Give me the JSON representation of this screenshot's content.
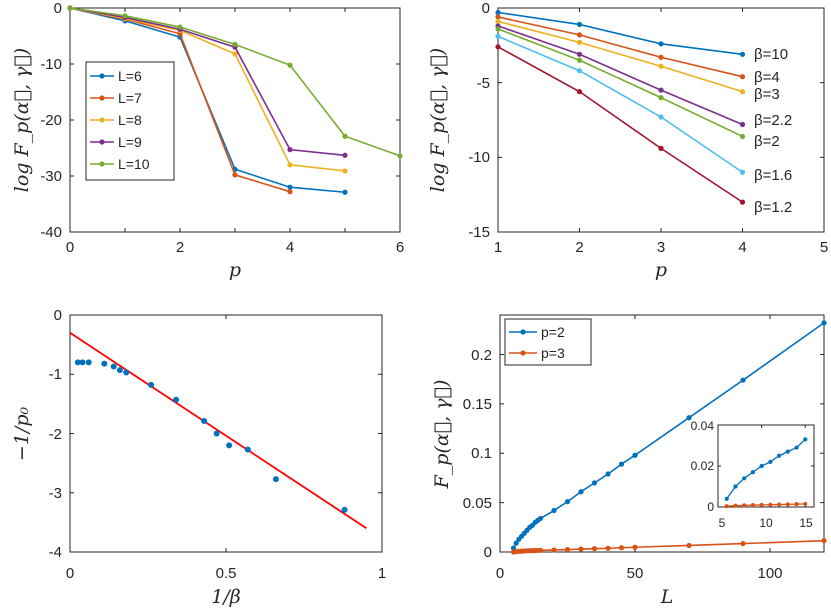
{
  "chart_data": [
    {
      "id": "a",
      "type": "line",
      "xlabel": "p",
      "ylabel": "log F_p(α⃗, γ⃗)",
      "xlim": [
        0,
        6
      ],
      "ylim": [
        -40,
        0
      ],
      "xticks": [
        "0",
        "2",
        "4",
        "6"
      ],
      "yticks": [
        "0",
        "-10",
        "-20",
        "-30",
        "-40"
      ],
      "legend": "left",
      "series": [
        {
          "name": "L=6",
          "color": "#0072BD",
          "x": [
            0,
            1,
            2,
            3,
            4,
            5
          ],
          "y": [
            0,
            -2.3,
            -5.2,
            -28.8,
            -32.0,
            -32.9
          ]
        },
        {
          "name": "L=7",
          "color": "#D95319",
          "x": [
            0,
            1,
            2,
            3,
            4
          ],
          "y": [
            0,
            -2.0,
            -4.6,
            -29.8,
            -32.8
          ]
        },
        {
          "name": "L=8",
          "color": "#EDB120",
          "x": [
            0,
            1,
            2,
            3,
            4,
            5
          ],
          "y": [
            0,
            -1.9,
            -4.0,
            -8.2,
            -28.0,
            -29.1
          ]
        },
        {
          "name": "L=9",
          "color": "#7E2F8E",
          "x": [
            0,
            1,
            2,
            3,
            4,
            5
          ],
          "y": [
            0,
            -1.7,
            -3.8,
            -7.0,
            -25.3,
            -26.3
          ]
        },
        {
          "name": "L=10",
          "color": "#77AC30",
          "x": [
            0,
            1,
            2,
            3,
            4,
            5,
            6
          ],
          "y": [
            0,
            -1.4,
            -3.4,
            -6.5,
            -10.2,
            -22.9,
            -26.4
          ]
        }
      ]
    },
    {
      "id": "b",
      "type": "line",
      "xlabel": "p",
      "ylabel": "log F_p(α⃗, γ⃗)",
      "xlim": [
        1,
        5
      ],
      "ylim": [
        -15,
        0
      ],
      "xticks": [
        "1",
        "2",
        "3",
        "4",
        "5"
      ],
      "yticks": [
        "0",
        "-5",
        "-10",
        "-15"
      ],
      "series": [
        {
          "name": "β=10",
          "color": "#0072BD",
          "x": [
            1,
            2,
            3,
            4
          ],
          "y": [
            -0.3,
            -1.1,
            -2.4,
            -3.1
          ]
        },
        {
          "name": "β=4",
          "color": "#D95319",
          "x": [
            1,
            2,
            3,
            4
          ],
          "y": [
            -0.6,
            -1.8,
            -3.3,
            -4.6
          ]
        },
        {
          "name": "β=3",
          "color": "#EDB120",
          "x": [
            1,
            2,
            3,
            4
          ],
          "y": [
            -0.9,
            -2.3,
            -3.9,
            -5.6
          ]
        },
        {
          "name": "β=2.2",
          "color": "#7E2F8E",
          "x": [
            1,
            2,
            3,
            4
          ],
          "y": [
            -1.2,
            -3.1,
            -5.5,
            -7.8
          ]
        },
        {
          "name": "β=2",
          "color": "#77AC30",
          "x": [
            1,
            2,
            3,
            4
          ],
          "y": [
            -1.4,
            -3.5,
            -6.0,
            -8.6
          ]
        },
        {
          "name": "β=1.6",
          "color": "#4DBEEE",
          "x": [
            1,
            2,
            3,
            4
          ],
          "y": [
            -1.9,
            -4.2,
            -7.3,
            -11.0
          ]
        },
        {
          "name": "β=1.2",
          "color": "#A2142F",
          "x": [
            1,
            2,
            3,
            4
          ],
          "y": [
            -2.6,
            -5.6,
            -9.4,
            -13.0
          ]
        }
      ]
    },
    {
      "id": "c",
      "type": "scatter",
      "xlabel": "1/β",
      "ylabel": "−1/p₀",
      "xlim": [
        0,
        1
      ],
      "ylim": [
        -4,
        0
      ],
      "xticks": [
        "0",
        "0.5",
        "1"
      ],
      "yticks": [
        "0",
        "-1",
        "-2",
        "-3",
        "-4"
      ],
      "points": {
        "color": "#0072BD",
        "x": [
          0.025,
          0.04,
          0.06,
          0.11,
          0.14,
          0.16,
          0.18,
          0.26,
          0.34,
          0.43,
          0.47,
          0.51,
          0.57,
          0.66,
          0.88
        ],
        "y": [
          -0.8,
          -0.8,
          -0.8,
          -0.82,
          -0.87,
          -0.93,
          -0.97,
          -1.18,
          -1.43,
          -1.79,
          -2.0,
          -2.2,
          -2.27,
          -2.77,
          -3.29
        ]
      },
      "fit_line": {
        "color": "#FF0000",
        "x": [
          0,
          0.95
        ],
        "y": [
          -0.3,
          -3.6
        ]
      }
    },
    {
      "id": "d",
      "type": "line",
      "xlabel": "L",
      "ylabel": "F_p(α⃗, γ⃗)",
      "xlim": [
        0,
        120
      ],
      "ylim": [
        0,
        0.24
      ],
      "xticks": [
        "0",
        "50",
        "100"
      ],
      "yticks": [
        "0",
        "0.05",
        "0.1",
        "0.15",
        "0.2"
      ],
      "legend": "top-left",
      "series": [
        {
          "name": "p=2",
          "color": "#0072BD",
          "x": [
            5,
            6,
            7,
            8,
            9,
            10,
            11,
            12,
            13,
            14,
            15,
            20,
            25,
            30,
            35,
            40,
            45,
            50,
            70,
            90,
            120
          ],
          "y": [
            0.004,
            0.009,
            0.013,
            0.016,
            0.019,
            0.022,
            0.025,
            0.027,
            0.03,
            0.032,
            0.034,
            0.042,
            0.051,
            0.061,
            0.07,
            0.079,
            0.089,
            0.098,
            0.136,
            0.174,
            0.232
          ]
        },
        {
          "name": "p=3",
          "color": "#D95319",
          "x": [
            5,
            6,
            7,
            8,
            9,
            10,
            11,
            12,
            13,
            14,
            15,
            20,
            25,
            30,
            35,
            40,
            45,
            50,
            70,
            90,
            120
          ],
          "y": [
            0.0,
            0.0004,
            0.0007,
            0.0009,
            0.001,
            0.0012,
            0.0013,
            0.0014,
            0.0015,
            0.0016,
            0.0017,
            0.0021,
            0.0025,
            0.003,
            0.0034,
            0.0038,
            0.0043,
            0.0048,
            0.0066,
            0.0085,
            0.0115
          ]
        }
      ],
      "inset": {
        "xlim": [
          5,
          16
        ],
        "ylim": [
          0,
          0.04
        ],
        "xticks": [
          "5",
          "10",
          "15"
        ],
        "yticks": [
          "0",
          "0.02",
          "0.04"
        ],
        "series_x": [
          6,
          7,
          8,
          9,
          10,
          11,
          12,
          13,
          14,
          15
        ],
        "p2": [
          0.004,
          0.01,
          0.014,
          0.017,
          0.02,
          0.022,
          0.025,
          0.027,
          0.029,
          0.033
        ],
        "p3": [
          0.0004,
          0.0006,
          0.0008,
          0.0009,
          0.001,
          0.0011,
          0.0012,
          0.0013,
          0.0014,
          0.0015
        ]
      }
    }
  ]
}
